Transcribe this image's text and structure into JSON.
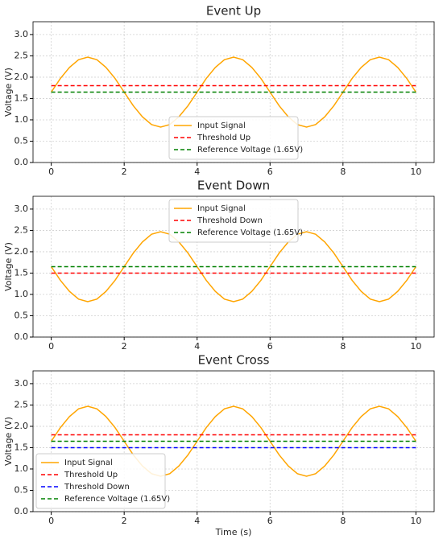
{
  "chart_data": [
    {
      "type": "line",
      "title": "Event Up",
      "ylabel": "Voltage (V)",
      "legend": "lower center",
      "grid": true,
      "x": [
        0,
        0.25,
        0.5,
        0.75,
        1,
        1.25,
        1.5,
        1.75,
        2,
        2.25,
        2.5,
        2.75,
        3,
        3.25,
        3.5,
        3.75,
        4,
        4.25,
        4.5,
        4.75,
        5,
        5.25,
        5.5,
        5.75,
        6,
        6.25,
        6.5,
        6.75,
        7,
        7.25,
        7.5,
        7.75,
        8,
        8.25,
        8.5,
        8.75,
        9,
        9.25,
        9.5,
        9.75,
        10
      ],
      "series": [
        {
          "name": "Input Signal",
          "color": "#ffa500",
          "values": [
            1.65,
            1.97,
            2.23,
            2.41,
            2.47,
            2.41,
            2.23,
            1.97,
            1.65,
            1.33,
            1.07,
            0.89,
            0.83,
            0.89,
            1.07,
            1.33,
            1.65,
            1.97,
            2.23,
            2.41,
            2.47,
            2.41,
            2.23,
            1.97,
            1.65,
            1.33,
            1.07,
            0.89,
            0.83,
            0.89,
            1.07,
            1.33,
            1.65,
            1.97,
            2.23,
            2.41,
            2.47,
            2.41,
            2.23,
            1.97,
            1.65
          ]
        }
      ],
      "hlines": [
        {
          "name": "Threshold Up",
          "color": "#ff0000",
          "value": 1.8
        },
        {
          "name": "Reference Voltage (1.65V)",
          "color": "#008000",
          "value": 1.65
        }
      ],
      "xlim": [
        -0.5,
        10.5
      ],
      "xticks": [
        0,
        2,
        4,
        6,
        8,
        10
      ],
      "ylim": [
        0,
        3.3
      ],
      "yticks": [
        {
          "value": 0,
          "label": "0.0"
        },
        {
          "value": 0.5,
          "label": "0.5"
        },
        {
          "value": 1,
          "label": "1.0"
        },
        {
          "value": 1.5,
          "label": "1.5"
        },
        {
          "value": 2,
          "label": "2.0"
        },
        {
          "value": 2.5,
          "label": "2.5"
        },
        {
          "value": 3,
          "label": "3.0"
        }
      ]
    },
    {
      "type": "line",
      "title": "Event Down",
      "ylabel": "Voltage (V)",
      "legend": "upper center",
      "grid": true,
      "x": [
        0,
        0.25,
        0.5,
        0.75,
        1,
        1.25,
        1.5,
        1.75,
        2,
        2.25,
        2.5,
        2.75,
        3,
        3.25,
        3.5,
        3.75,
        4,
        4.25,
        4.5,
        4.75,
        5,
        5.25,
        5.5,
        5.75,
        6,
        6.25,
        6.5,
        6.75,
        7,
        7.25,
        7.5,
        7.75,
        8,
        8.25,
        8.5,
        8.75,
        9,
        9.25,
        9.5,
        9.75,
        10
      ],
      "series": [
        {
          "name": "Input Signal",
          "color": "#ffa500",
          "values": [
            1.65,
            1.33,
            1.07,
            0.89,
            0.83,
            0.89,
            1.07,
            1.33,
            1.65,
            1.97,
            2.23,
            2.41,
            2.47,
            2.41,
            2.23,
            1.97,
            1.65,
            1.33,
            1.07,
            0.89,
            0.83,
            0.89,
            1.07,
            1.33,
            1.65,
            1.97,
            2.23,
            2.41,
            2.47,
            2.41,
            2.23,
            1.97,
            1.65,
            1.33,
            1.07,
            0.89,
            0.83,
            0.89,
            1.07,
            1.33,
            1.65
          ]
        }
      ],
      "hlines": [
        {
          "name": "Threshold Down",
          "color": "#ff0000",
          "value": 1.5
        },
        {
          "name": "Reference Voltage (1.65V)",
          "color": "#008000",
          "value": 1.65
        }
      ],
      "xlim": [
        -0.5,
        10.5
      ],
      "xticks": [
        0,
        2,
        4,
        6,
        8,
        10
      ],
      "ylim": [
        0,
        3.3
      ],
      "yticks": [
        {
          "value": 0,
          "label": "0.0"
        },
        {
          "value": 0.5,
          "label": "0.5"
        },
        {
          "value": 1,
          "label": "1.0"
        },
        {
          "value": 1.5,
          "label": "1.5"
        },
        {
          "value": 2,
          "label": "2.0"
        },
        {
          "value": 2.5,
          "label": "2.5"
        },
        {
          "value": 3,
          "label": "3.0"
        }
      ]
    },
    {
      "type": "line",
      "title": "Event Cross",
      "ylabel": "Voltage (V)",
      "xlabel": "Time (s)",
      "legend": "lower left",
      "grid": true,
      "x": [
        0,
        0.25,
        0.5,
        0.75,
        1,
        1.25,
        1.5,
        1.75,
        2,
        2.25,
        2.5,
        2.75,
        3,
        3.25,
        3.5,
        3.75,
        4,
        4.25,
        4.5,
        4.75,
        5,
        5.25,
        5.5,
        5.75,
        6,
        6.25,
        6.5,
        6.75,
        7,
        7.25,
        7.5,
        7.75,
        8,
        8.25,
        8.5,
        8.75,
        9,
        9.25,
        9.5,
        9.75,
        10
      ],
      "series": [
        {
          "name": "Input Signal",
          "color": "#ffa500",
          "values": [
            1.65,
            1.97,
            2.23,
            2.41,
            2.47,
            2.41,
            2.23,
            1.97,
            1.65,
            1.33,
            1.07,
            0.89,
            0.83,
            0.89,
            1.07,
            1.33,
            1.65,
            1.97,
            2.23,
            2.41,
            2.47,
            2.41,
            2.23,
            1.97,
            1.65,
            1.33,
            1.07,
            0.89,
            0.83,
            0.89,
            1.07,
            1.33,
            1.65,
            1.97,
            2.23,
            2.41,
            2.47,
            2.41,
            2.23,
            1.97,
            1.65
          ]
        }
      ],
      "hlines": [
        {
          "name": "Threshold Up",
          "color": "#ff0000",
          "value": 1.8
        },
        {
          "name": "Threshold Down",
          "color": "#0000ff",
          "value": 1.5
        },
        {
          "name": "Reference Voltage (1.65V)",
          "color": "#008000",
          "value": 1.65
        }
      ],
      "xlim": [
        -0.5,
        10.5
      ],
      "xticks": [
        0,
        2,
        4,
        6,
        8,
        10
      ],
      "ylim": [
        0,
        3.3
      ],
      "yticks": [
        {
          "value": 0,
          "label": "0.0"
        },
        {
          "value": 0.5,
          "label": "0.5"
        },
        {
          "value": 1,
          "label": "1.0"
        },
        {
          "value": 1.5,
          "label": "1.5"
        },
        {
          "value": 2,
          "label": "2.0"
        },
        {
          "value": 2.5,
          "label": "2.5"
        },
        {
          "value": 3,
          "label": "3.0"
        }
      ]
    }
  ]
}
